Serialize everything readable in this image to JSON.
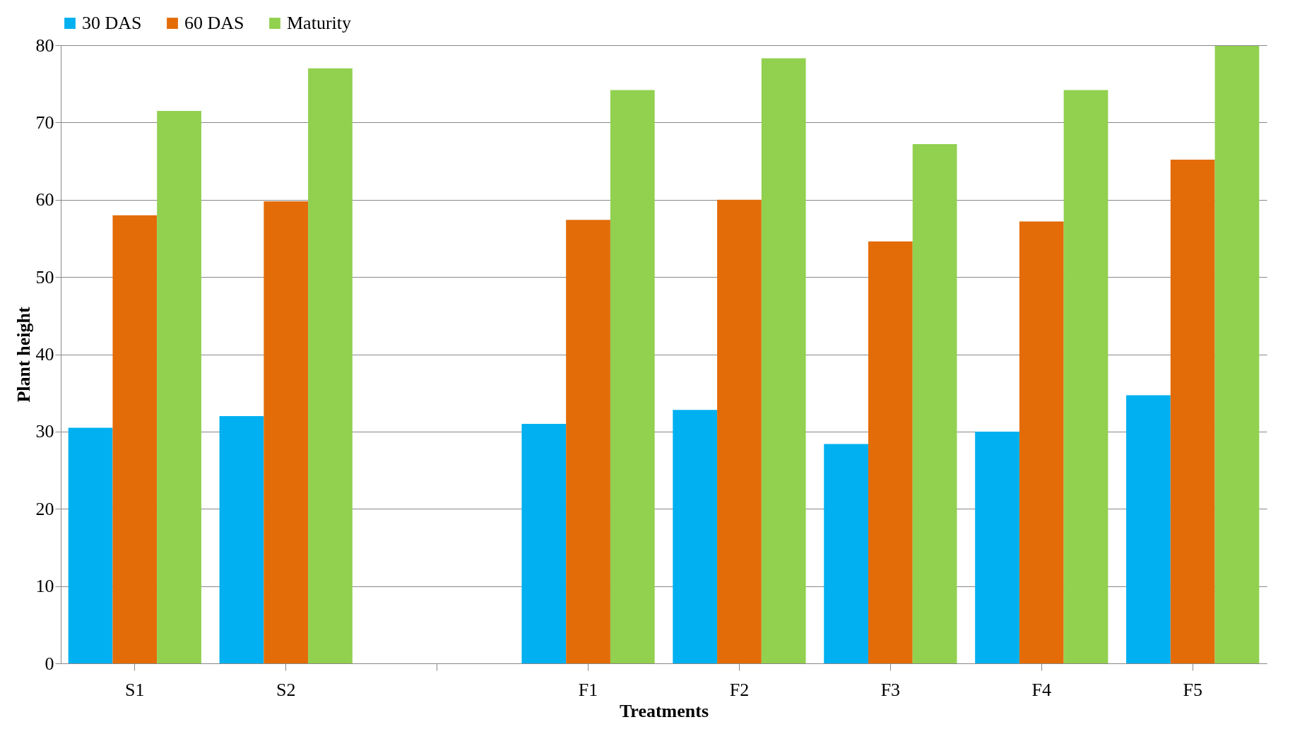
{
  "chart_data": {
    "type": "bar",
    "xlabel": "Treatments",
    "ylabel": "Plant height",
    "categories": [
      "S1",
      "S2",
      null,
      "F1",
      "F2",
      "F3",
      "F4",
      "F5"
    ],
    "series": [
      {
        "name": "30 DAS",
        "color": "#00b0f0",
        "values": [
          30.5,
          32,
          null,
          31,
          32.8,
          28.4,
          30,
          34.7
        ]
      },
      {
        "name": "60 DAS",
        "color": "#e36c09",
        "values": [
          58,
          59.8,
          null,
          57.4,
          60,
          54.6,
          57.2,
          65.2
        ]
      },
      {
        "name": "Maturity",
        "color": "#92d050",
        "values": [
          71.5,
          77,
          null,
          74.2,
          78.3,
          67.2,
          74.2,
          79.9
        ]
      }
    ],
    "ylim": [
      0,
      80
    ],
    "yticks": [
      0,
      10,
      20,
      30,
      40,
      50,
      60,
      70,
      80
    ],
    "grid": "y",
    "legend": "top"
  }
}
